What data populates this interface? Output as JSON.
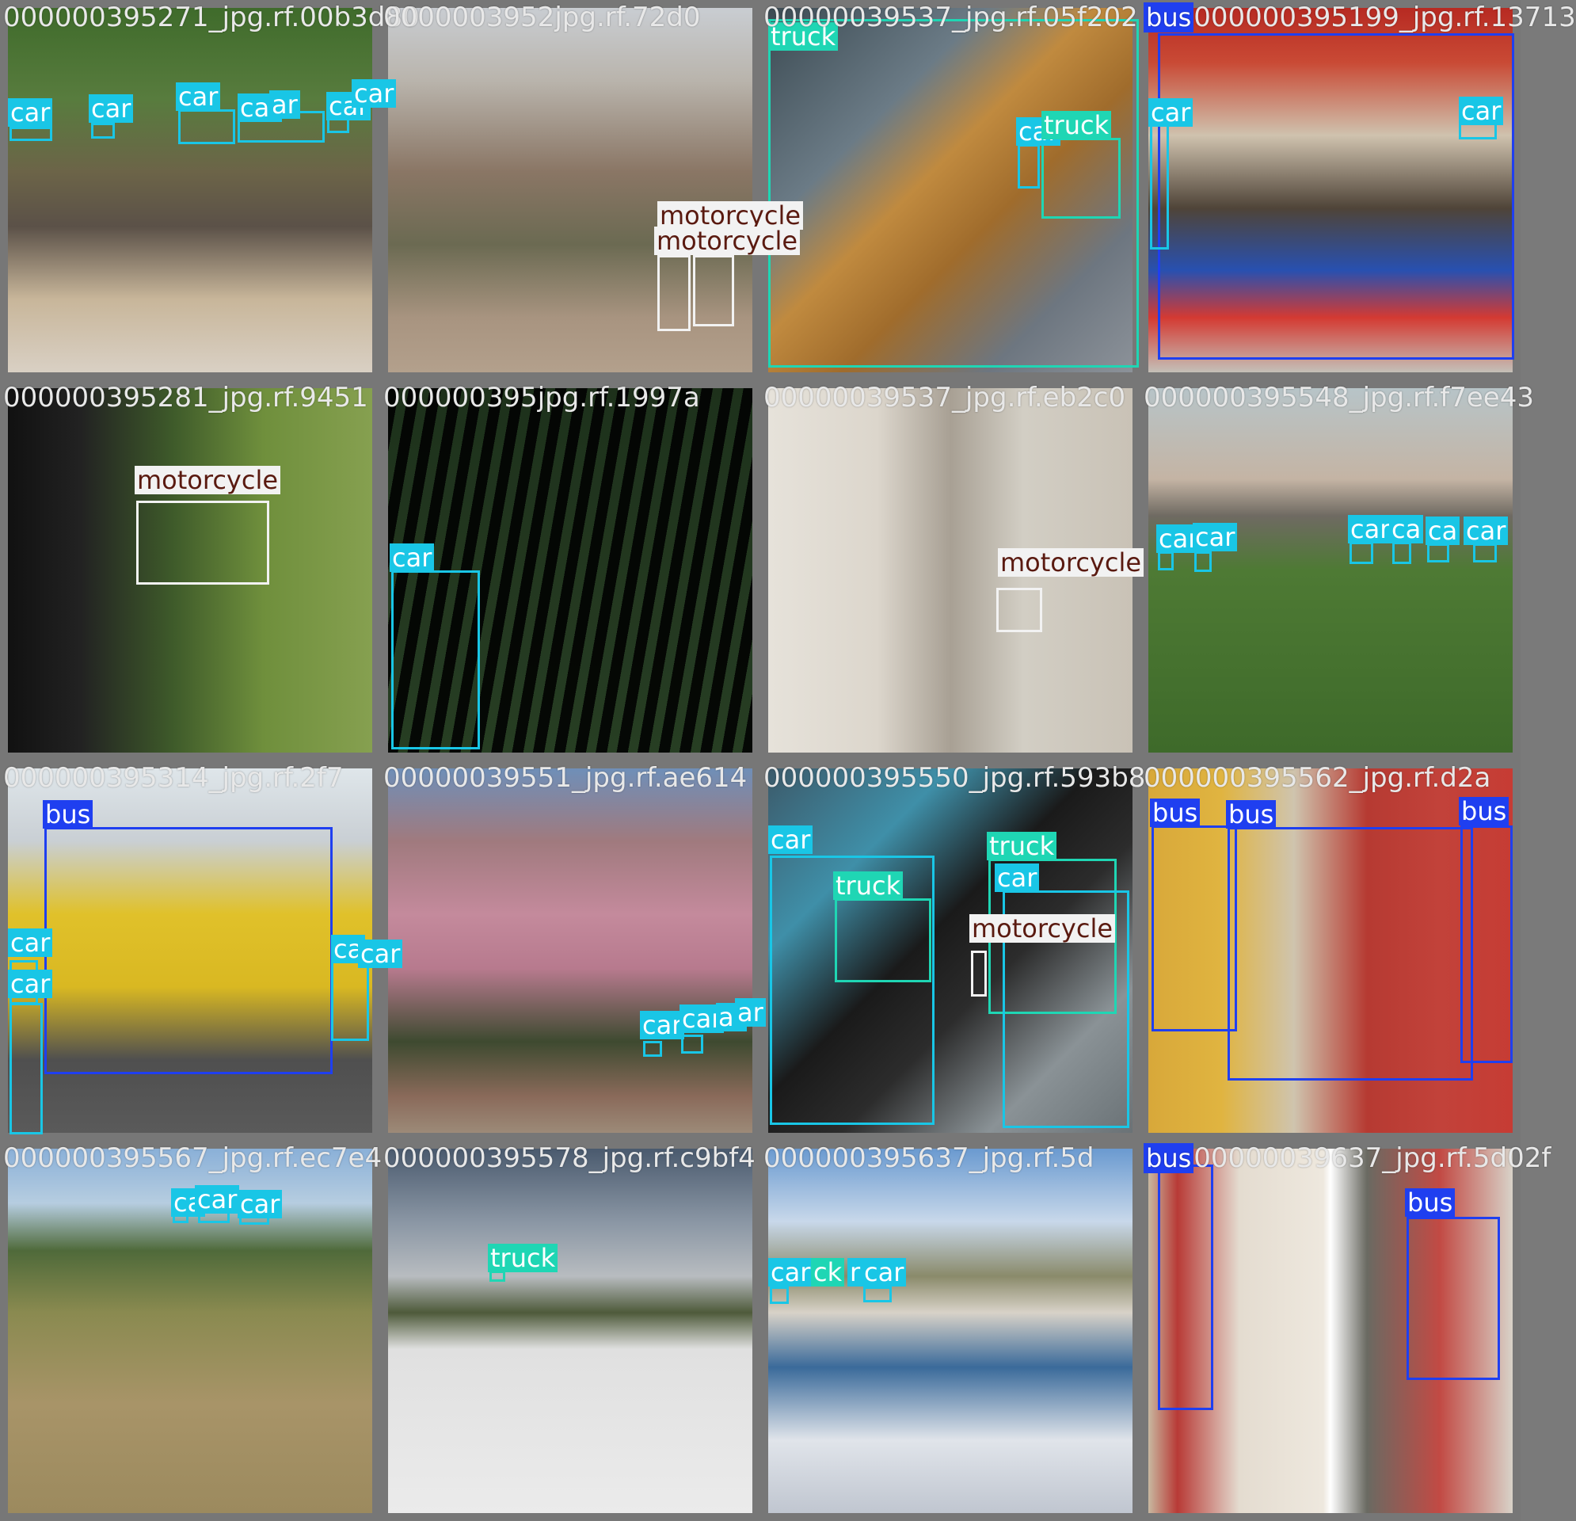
{
  "tiles": [
    {
      "name": "000000395271_jpg.rf.00b3d80",
      "labels": [
        "car",
        "car",
        "car",
        "car",
        "ar",
        "car",
        "car"
      ]
    },
    {
      "name": "0000003952",
      "overlap_name": "jpg.rf.72d0",
      "labels": [
        "motorcycle",
        "motorcycle"
      ]
    },
    {
      "name": "0000003953",
      "overlap_name": "7_jpg.rf.05f202",
      "labels": [
        "truck",
        "car",
        "truck"
      ]
    },
    {
      "name": "bus",
      "overlap_name": "000000395199_jpg.rf.13713",
      "labels": [
        "bus",
        "car",
        "car"
      ]
    },
    {
      "name": "000000395281_jpg.rf.9451",
      "labels": [
        "motorcycle"
      ]
    },
    {
      "name": "000000395",
      "overlap_name": "jpg.rf.1997a",
      "labels": [
        "car"
      ]
    },
    {
      "name": "0000003953",
      "overlap_name": "7_jpg.rf.eb2c0",
      "labels": [
        "motorcycle"
      ]
    },
    {
      "name": "0000003955",
      "overlap_name": "48_jpg.rf.f7ee43",
      "labels": [
        "car",
        "car",
        "car",
        "ca",
        "ca",
        "car"
      ]
    },
    {
      "name": "000000395314_jpg.rf.2f7",
      "labels": [
        "bus",
        "car",
        "car",
        "ca",
        "car"
      ]
    },
    {
      "name": "0000003955",
      "overlap_name": "1_jpg.rf.ae614",
      "labels": [
        "car",
        "car",
        "ar",
        "ar"
      ]
    },
    {
      "name": "0000003955",
      "overlap_name": "50_jpg.rf.593b8",
      "labels": [
        "car",
        "truck",
        "truck",
        "car",
        "motorcycle"
      ]
    },
    {
      "name": "0000003955",
      "overlap_name": "62_jpg.rf.d2a",
      "labels": [
        "bus",
        "bus",
        "bus"
      ]
    },
    {
      "name": "000000395567_jpg.rf.ec7e4",
      "labels": [
        "ca",
        "car",
        "car"
      ]
    },
    {
      "name": "0000003955",
      "overlap_name": "78_jpg.rf.c9bf4",
      "labels": [
        "truck"
      ]
    },
    {
      "name": "0000003956",
      "overlap_name": "37_jpg.rf.5d",
      "labels": [
        "car",
        "ck",
        "r",
        "car"
      ]
    },
    {
      "name": "0000003963",
      "overlap_name": "7_jpg.rf.5d02f",
      "labels": [
        "bus",
        "bus"
      ]
    }
  ]
}
